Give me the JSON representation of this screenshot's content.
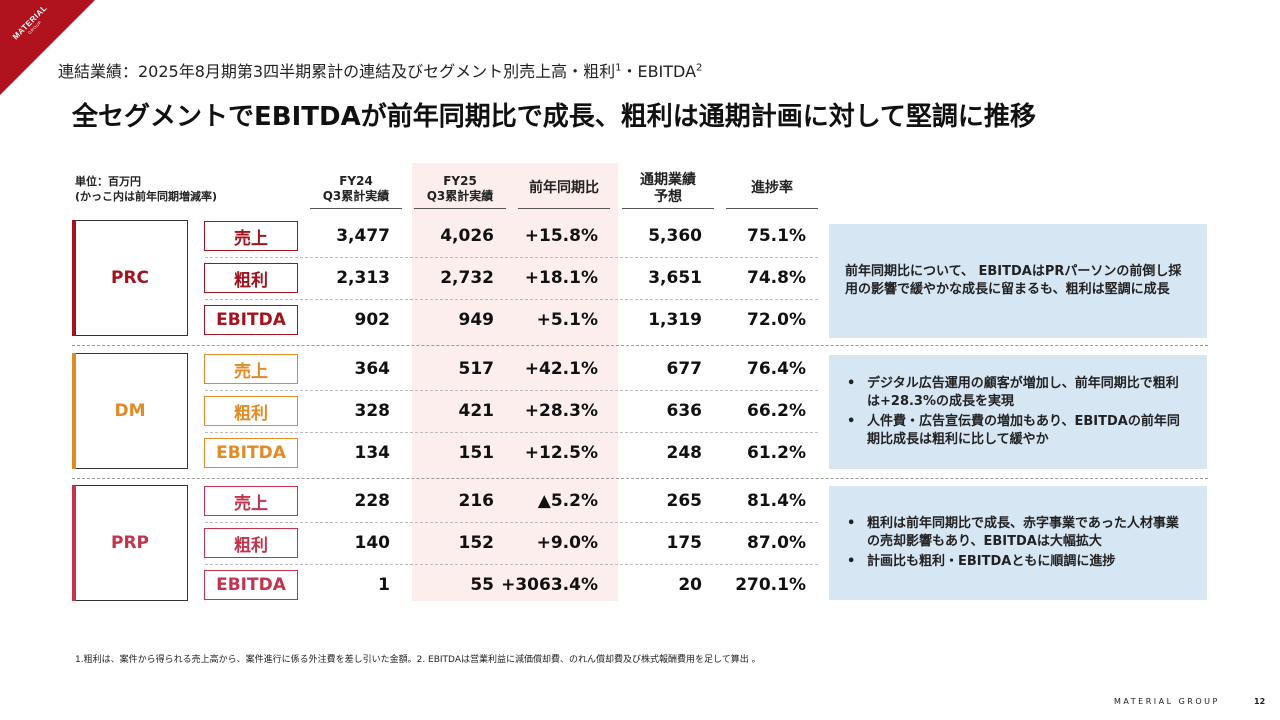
{
  "logo": {
    "name": "MATERIAL",
    "sub": "GROUP",
    "color": "#b0131d"
  },
  "subtitle": {
    "text": "連結業績：2025年8月期第3四半期累計の連結及びセグメント別売上高・粗利",
    "sup1": "1",
    "mid": "・EBITDA",
    "sup2": "2"
  },
  "title": "全セグメントでEBITDAが前年同期比で成長、粗利は通期計画に対して堅調に推移",
  "unit": {
    "line1": "単位：百万円",
    "line2": "(かっこ内は前年同期増減率)"
  },
  "headers": {
    "fy24": {
      "line1": "FY24",
      "line2": "Q3累計実績"
    },
    "fy25": {
      "line1": "FY25",
      "line2": "Q3累計実績"
    },
    "yoy": "前年同期比",
    "forecast": {
      "line1": "通期業績",
      "line2": "予想"
    },
    "progress": "進捗率"
  },
  "segments": [
    {
      "name": "PRC",
      "color": "#a3131f",
      "rows": [
        {
          "metric": "売上",
          "fy24": "3,477",
          "fy25": "4,026",
          "yoy": "+15.8%",
          "forecast": "5,360",
          "progress": "75.1%"
        },
        {
          "metric": "粗利",
          "fy24": "2,313",
          "fy25": "2,732",
          "yoy": "+18.1%",
          "forecast": "3,651",
          "progress": "74.8%"
        },
        {
          "metric": "EBITDA",
          "fy24": "902",
          "fy25": "949",
          "yoy": "+5.1%",
          "forecast": "1,319",
          "progress": "72.0%"
        }
      ],
      "note": {
        "text": "前年同期比について、 EBITDAはPRパーソンの前倒し採用の影響で緩やかな成長に留まるも、粗利は堅調に成長"
      }
    },
    {
      "name": "DM",
      "color": "#e08b28",
      "rows": [
        {
          "metric": "売上",
          "fy24": "364",
          "fy25": "517",
          "yoy": "+42.1%",
          "forecast": "677",
          "progress": "76.4%"
        },
        {
          "metric": "粗利",
          "fy24": "328",
          "fy25": "421",
          "yoy": "+28.3%",
          "forecast": "636",
          "progress": "66.2%"
        },
        {
          "metric": "EBITDA",
          "fy24": "134",
          "fy25": "151",
          "yoy": "+12.5%",
          "forecast": "248",
          "progress": "61.2%"
        }
      ],
      "note": {
        "bullets": [
          "デジタル広告運用の顧客が増加し、前年同期比で粗利は+28.3%の成長を実現",
          "人件費・広告宣伝費の増加もあり、EBITDAの前年同期比成長は粗利に比して緩やか"
        ]
      }
    },
    {
      "name": "PRP",
      "color": "#c2344e",
      "rows": [
        {
          "metric": "売上",
          "fy24": "228",
          "fy25": "216",
          "yoy": "▲5.2%",
          "forecast": "265",
          "progress": "81.4%"
        },
        {
          "metric": "粗利",
          "fy24": "140",
          "fy25": "152",
          "yoy": "+9.0%",
          "forecast": "175",
          "progress": "87.0%"
        },
        {
          "metric": "EBITDA",
          "fy24": "1",
          "fy25": "55",
          "yoy": "+3063.4%",
          "forecast": "20",
          "progress": "270.1%"
        }
      ],
      "note": {
        "bullets": [
          "粗利は前年同期比で成長、赤字事業であった人材事業の売却影響もあり、EBITDAは大幅拡大",
          "計画比も粗利・EBITDAともに順調に進捗"
        ]
      }
    }
  ],
  "footnote": "1.粗利は、案件から得られる売上高から、案件進行に係る外注費を差し引いた金額。2. EBITDAは営業利益に減価償却費、のれん償却費及び株式報酬費用を足して算出 。",
  "footer": {
    "brand": "MATERIAL GROUP",
    "page": "12"
  }
}
